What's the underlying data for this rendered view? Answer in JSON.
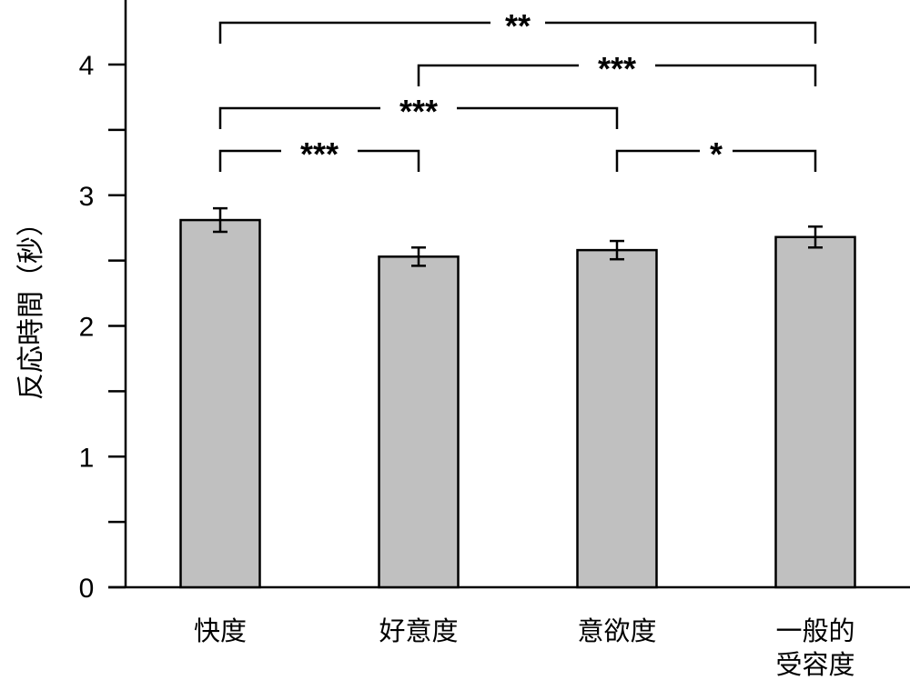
{
  "chart_data": {
    "type": "bar",
    "title": "",
    "xlabel": "",
    "ylabel": "反応時間（秒）",
    "categories": [
      "快度",
      "好意度",
      "意欲度",
      "一般的\n受容度"
    ],
    "category_lines": [
      [
        "快度"
      ],
      [
        "好意度"
      ],
      [
        "意欲度"
      ],
      [
        "一般的",
        "受容度"
      ]
    ],
    "values": [
      2.81,
      2.53,
      2.58,
      2.68
    ],
    "error": [
      0.09,
      0.07,
      0.07,
      0.08
    ],
    "ylim": [
      0,
      4.5
    ],
    "yticks": [
      0,
      1,
      2,
      3,
      4
    ],
    "ytick_labels": [
      "0",
      "1",
      "2",
      "3",
      "4"
    ],
    "minor_yticks": [
      0.5,
      1.5,
      2.5,
      3.5
    ],
    "bar_color": "#c0c0c0",
    "edge_color": "#000000",
    "grid": false,
    "legend": null,
    "significance": [
      {
        "from": 0,
        "to": 3,
        "label": "**"
      },
      {
        "from": 1,
        "to": 3,
        "label": "***"
      },
      {
        "from": 0,
        "to": 2,
        "label": "***"
      },
      {
        "from": 0,
        "to": 1,
        "label": "***"
      },
      {
        "from": 2,
        "to": 3,
        "label": "*"
      }
    ]
  }
}
